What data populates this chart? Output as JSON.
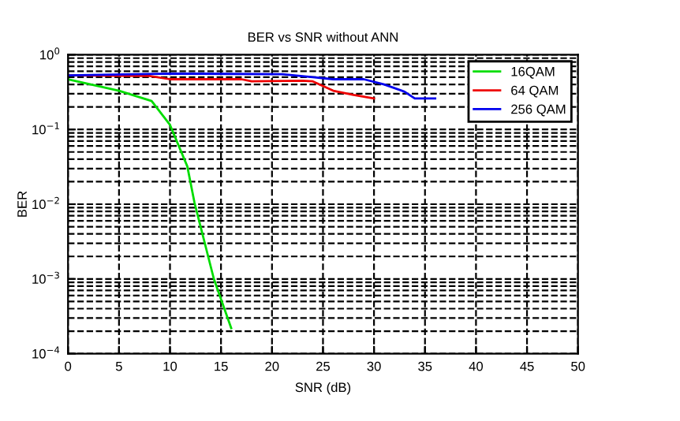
{
  "chart_data": {
    "type": "line",
    "title": "BER vs SNR without ANN",
    "xlabel": "SNR (dB)",
    "ylabel": "BER",
    "series": [
      {
        "name": "16QAM",
        "color": "#00dd00",
        "x": [
          0,
          5,
          8.2,
          10,
          11.7,
          12.4,
          14.3,
          16
        ],
        "values": [
          0.47,
          0.33,
          0.24,
          0.115,
          0.032,
          0.0105,
          0.001,
          0.00022
        ]
      },
      {
        "name": "64 QAM",
        "color": "#ee0000",
        "x": [
          0,
          8,
          10,
          17,
          18,
          23,
          24,
          26,
          28,
          30
        ],
        "values": [
          0.53,
          0.52,
          0.47,
          0.47,
          0.44,
          0.45,
          0.44,
          0.33,
          0.29,
          0.26
        ]
      },
      {
        "name": "256 QAM",
        "color": "#0000ee",
        "x": [
          0,
          10,
          21,
          24,
          26,
          29,
          31,
          33,
          34,
          36
        ],
        "values": [
          0.53,
          0.56,
          0.55,
          0.5,
          0.47,
          0.47,
          0.4,
          0.32,
          0.26,
          0.26
        ]
      }
    ],
    "log": "y",
    "xlim": [
      0,
      50
    ],
    "xticks": [
      0,
      5,
      10,
      15,
      20,
      25,
      30,
      35,
      40,
      45,
      50
    ],
    "ylim": [
      0.0001,
      1
    ],
    "yticks": [
      {
        "value": 0.0001,
        "label": "10$^{−4}$"
      },
      {
        "value": 0.001,
        "label": "10$^{−3}$"
      },
      {
        "value": 0.01,
        "label": "10$^{−2}$"
      },
      {
        "value": 0.1,
        "label": "10$^{−1}$"
      },
      {
        "value": 1,
        "label": "10$^{0}$"
      }
    ],
    "grid": true,
    "legend": "top right",
    "line_style": "solid",
    "marker": "none"
  }
}
